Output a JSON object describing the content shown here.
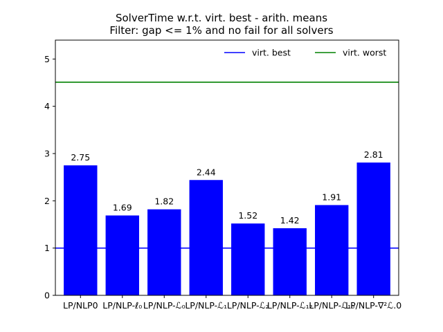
{
  "chart_data": {
    "type": "bar",
    "title": "SolverTime w.r.t. virt. best - arith. means",
    "subtitle": "Filter: gap <= 1% and no fail for all solvers",
    "xlabel": "",
    "ylabel": "",
    "categories": [
      "LP/NLP0",
      "LP/NLP-ℓ₀",
      "LP/NLP-ℒ₀",
      "LP/NLP-ℒ₁",
      "LP/NLP-ℒ₂",
      "LP/NLP-ℒ₁₂",
      "LP/NLP-ℒ₁₀",
      "LP/NLP-∇²ℒ.0"
    ],
    "values": [
      2.75,
      1.69,
      1.82,
      2.44,
      1.52,
      1.42,
      1.91,
      2.81
    ],
    "data_labels": [
      "2.75",
      "1.69",
      "1.82",
      "2.44",
      "1.52",
      "1.42",
      "1.91",
      "2.81"
    ],
    "ylim": [
      0,
      5.4
    ],
    "yticks": [
      0,
      1,
      2,
      3,
      4,
      5
    ],
    "bar_color": "#0000ff",
    "reference_lines": [
      {
        "name": "virt. best",
        "value": 1.0,
        "color": "#0000ff"
      },
      {
        "name": "virt. worst",
        "value": 4.51,
        "color": "#008000"
      }
    ],
    "legend": {
      "position": "top-right",
      "entries": [
        "virt. best",
        "virt. worst"
      ]
    },
    "grid": false
  }
}
